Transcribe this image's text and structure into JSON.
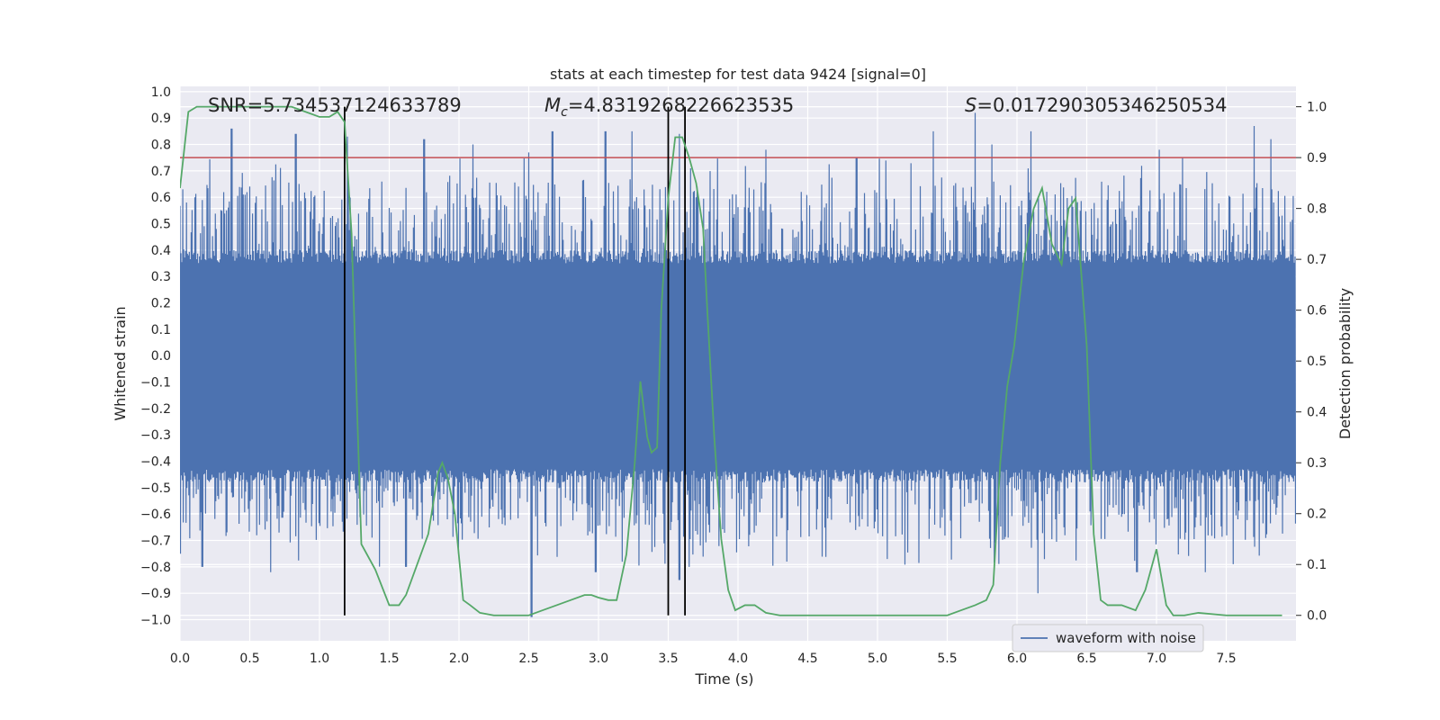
{
  "chart_data": {
    "type": "line",
    "title": "stats at each timestep for test data 9424 [signal=0]",
    "xlabel": "Time (s)",
    "ylabel_left": "Whitened strain",
    "ylabel_right": "Detection probability",
    "xlim": [
      0.0,
      8.0
    ],
    "ylim_left": [
      -1.08,
      1.02
    ],
    "ylim_right": [
      -0.05,
      1.04
    ],
    "x_ticks": [
      "0.0",
      "0.5",
      "1.0",
      "1.5",
      "2.0",
      "2.5",
      "3.0",
      "3.5",
      "4.0",
      "4.5",
      "5.0",
      "5.5",
      "6.0",
      "6.5",
      "7.0",
      "7.5"
    ],
    "y_left_ticks": [
      "1.0",
      "0.9",
      "0.8",
      "0.7",
      "0.6",
      "0.5",
      "0.4",
      "0.3",
      "0.2",
      "0.1",
      "0.0",
      "−0.1",
      "−0.2",
      "−0.3",
      "−0.4",
      "−0.5",
      "−0.6",
      "−0.7",
      "−0.8",
      "−0.9",
      "−1.0"
    ],
    "y_right_ticks": [
      "0.0",
      "0.1",
      "0.2",
      "0.3",
      "0.4",
      "0.5",
      "0.6",
      "0.7",
      "0.8",
      "0.9",
      "1.0"
    ],
    "annotations": {
      "snr": "SNR=5.734537124633789",
      "mc_symbol": "M",
      "mc_sub": "c",
      "mc_value": "=4.8319268226623535",
      "s_symbol": "S",
      "s_value": "=0.017290305346250534"
    },
    "threshold": {
      "value": 0.9,
      "axis": "right",
      "color": "#c44e52"
    },
    "vertical_lines": [
      1.18,
      3.5,
      3.62
    ],
    "legend": {
      "label": "waveform with noise",
      "position": "lower-right"
    },
    "series": [
      {
        "name": "waveform with noise",
        "axis": "left",
        "color": "#4c72b0",
        "kind": "noise",
        "band": [
          -0.43,
          0.35
        ],
        "peaks": [
          [
            0.02,
            0.63
          ],
          [
            0.37,
            0.86
          ],
          [
            0.83,
            0.84
          ],
          [
            1.2,
            0.83
          ],
          [
            1.75,
            0.82
          ],
          [
            2.1,
            0.8
          ],
          [
            2.5,
            0.77
          ],
          [
            2.67,
            0.85
          ],
          [
            3.05,
            0.85
          ],
          [
            3.24,
            0.85
          ],
          [
            3.58,
            0.84
          ],
          [
            4.2,
            0.78
          ],
          [
            4.85,
            0.75
          ],
          [
            5.4,
            0.85
          ],
          [
            5.7,
            0.92
          ],
          [
            5.82,
            0.8
          ],
          [
            6.1,
            0.85
          ],
          [
            7.02,
            0.78
          ],
          [
            7.7,
            0.87
          ],
          [
            7.82,
            0.82
          ]
        ],
        "troughs": [
          [
            0.0,
            -0.75
          ],
          [
            0.16,
            -0.8
          ],
          [
            0.65,
            -0.82
          ],
          [
            1.62,
            -0.8
          ],
          [
            2.52,
            -0.99
          ],
          [
            2.98,
            -0.82
          ],
          [
            3.58,
            -0.85
          ],
          [
            3.65,
            -0.8
          ],
          [
            4.35,
            -0.78
          ],
          [
            5.07,
            -0.77
          ],
          [
            6.15,
            -0.9
          ],
          [
            6.86,
            -0.82
          ],
          [
            7.35,
            -0.82
          ],
          [
            7.55,
            -0.79
          ]
        ]
      },
      {
        "name": "detection probability",
        "axis": "right",
        "color": "#55a868",
        "x": [
          0.0,
          0.06,
          0.12,
          0.2,
          0.5,
          0.8,
          0.9,
          1.0,
          1.07,
          1.13,
          1.18,
          1.23,
          1.3,
          1.4,
          1.5,
          1.57,
          1.62,
          1.7,
          1.78,
          1.85,
          1.88,
          1.92,
          1.97,
          2.03,
          2.08,
          2.15,
          2.25,
          2.5,
          2.6,
          2.7,
          2.8,
          2.9,
          2.95,
          3.0,
          3.07,
          3.13,
          3.2,
          3.26,
          3.3,
          3.35,
          3.38,
          3.42,
          3.45,
          3.5,
          3.55,
          3.6,
          3.65,
          3.7,
          3.75,
          3.78,
          3.83,
          3.88,
          3.93,
          3.98,
          4.05,
          4.12,
          4.2,
          4.3,
          4.5,
          5.0,
          5.5,
          5.6,
          5.7,
          5.78,
          5.83,
          5.88,
          5.93,
          5.98,
          6.05,
          6.12,
          6.18,
          6.25,
          6.32,
          6.37,
          6.42,
          6.5,
          6.55,
          6.6,
          6.65,
          6.75,
          6.85,
          6.92,
          7.0,
          7.07,
          7.12,
          7.2,
          7.3,
          7.5,
          7.7,
          7.9
        ],
        "y": [
          0.84,
          0.99,
          1.0,
          1.0,
          1.0,
          1.0,
          0.99,
          0.98,
          0.98,
          0.99,
          0.97,
          0.75,
          0.14,
          0.09,
          0.02,
          0.02,
          0.04,
          0.1,
          0.16,
          0.28,
          0.3,
          0.27,
          0.2,
          0.03,
          0.02,
          0.005,
          0.0,
          0.0,
          0.01,
          0.02,
          0.03,
          0.04,
          0.04,
          0.035,
          0.03,
          0.03,
          0.12,
          0.3,
          0.46,
          0.35,
          0.32,
          0.33,
          0.6,
          0.82,
          0.94,
          0.94,
          0.9,
          0.85,
          0.76,
          0.6,
          0.35,
          0.15,
          0.05,
          0.01,
          0.02,
          0.02,
          0.005,
          0.0,
          0.0,
          0.0,
          0.0,
          0.01,
          0.02,
          0.03,
          0.06,
          0.3,
          0.45,
          0.53,
          0.7,
          0.8,
          0.84,
          0.73,
          0.69,
          0.8,
          0.82,
          0.53,
          0.16,
          0.03,
          0.02,
          0.02,
          0.01,
          0.05,
          0.13,
          0.02,
          0.0,
          0.0,
          0.005,
          0.0,
          0.0,
          0.0
        ]
      }
    ]
  }
}
